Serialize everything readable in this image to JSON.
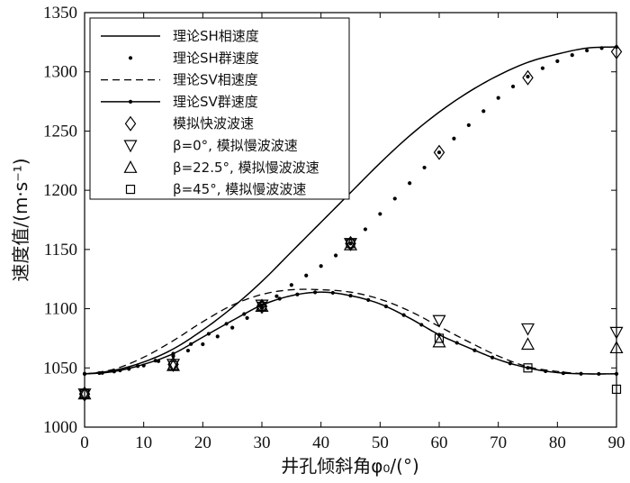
{
  "chart_data": {
    "type": "line",
    "xlabel": "井孔倾斜角φ₀/(°)",
    "ylabel": "速度值/(m·s⁻¹)",
    "xlim": [
      0,
      90
    ],
    "ylim": [
      1000,
      1350
    ],
    "xticks": [
      "0",
      "10",
      "20",
      "30",
      "40",
      "50",
      "60",
      "70",
      "80",
      "90"
    ],
    "yticks": [
      "1000",
      "1050",
      "1100",
      "1150",
      "1200",
      "1250",
      "1300",
      "1350"
    ],
    "grid": false,
    "legend_position": "top-left",
    "series": [
      {
        "name": "理论SH相速度",
        "style": "solid",
        "x": [
          0,
          5,
          10,
          15,
          20,
          25,
          30,
          35,
          40,
          45,
          50,
          55,
          60,
          65,
          70,
          75,
          80,
          85,
          90
        ],
        "values": [
          1045,
          1048,
          1055,
          1066,
          1082,
          1101,
          1123,
          1148,
          1173,
          1198,
          1223,
          1246,
          1266,
          1283,
          1297,
          1308,
          1315,
          1320,
          1321
        ]
      },
      {
        "name": "理论SH群速度",
        "style": "dotted-markers",
        "x": [
          0,
          5,
          10,
          15,
          20,
          25,
          30,
          35,
          40,
          45,
          50,
          55,
          60,
          65,
          70,
          75,
          80,
          85,
          90
        ],
        "values": [
          1045,
          1047,
          1052,
          1060,
          1070,
          1084,
          1101,
          1120,
          1136,
          1155,
          1180,
          1206,
          1232,
          1255,
          1278,
          1296,
          1309,
          1318,
          1321
        ]
      },
      {
        "name": "理论SV相速度",
        "style": "dashed",
        "x": [
          0,
          5,
          10,
          15,
          20,
          25,
          30,
          35,
          40,
          45,
          50,
          55,
          60,
          65,
          70,
          75,
          80,
          85,
          90
        ],
        "values": [
          1045,
          1049,
          1059,
          1073,
          1089,
          1103,
          1112,
          1116,
          1116,
          1114,
          1108,
          1098,
          1085,
          1072,
          1060,
          1051,
          1047,
          1045,
          1045
        ]
      },
      {
        "name": "理论SV群速度",
        "style": "solid-dot-markers",
        "x": [
          0,
          5,
          10,
          15,
          20,
          25,
          30,
          35,
          40,
          45,
          50,
          55,
          60,
          65,
          70,
          75,
          80,
          85,
          90
        ],
        "values": [
          1045,
          1047,
          1053,
          1062,
          1076,
          1090,
          1103,
          1111,
          1114,
          1111,
          1104,
          1092,
          1078,
          1067,
          1057,
          1050,
          1046,
          1045,
          1045
        ]
      },
      {
        "name": "模拟快波波速",
        "marker": "diamond",
        "x": [
          0,
          15,
          30,
          45,
          60,
          75,
          90
        ],
        "values": [
          1028,
          1053,
          1102,
          1155,
          1232,
          1295,
          1317
        ]
      },
      {
        "name": "β=0°, 模拟慢波波速",
        "marker": "triangle-down",
        "x": [
          0,
          15,
          30,
          45,
          60,
          75,
          90
        ],
        "values": [
          1028,
          1053,
          1103,
          1155,
          1090,
          1083,
          1080
        ]
      },
      {
        "name": "β=22.5°, 模拟慢波波速",
        "marker": "triangle-up",
        "x": [
          0,
          15,
          30,
          45,
          60,
          75,
          90
        ],
        "values": [
          1028,
          1052,
          1102,
          1154,
          1072,
          1070,
          1067
        ]
      },
      {
        "name": "β=45°, 模拟慢波波速",
        "marker": "square",
        "x": [
          0,
          15,
          30,
          45,
          60,
          75,
          90
        ],
        "values": [
          1028,
          1052,
          1102,
          1155,
          1075,
          1050,
          1032
        ]
      }
    ]
  }
}
